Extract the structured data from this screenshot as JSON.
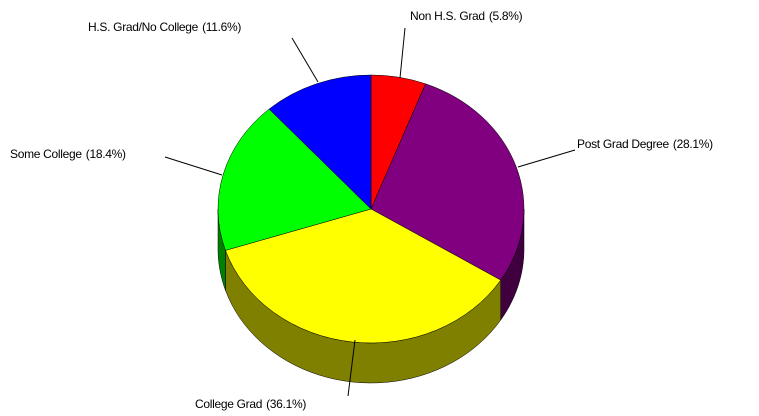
{
  "chart_data": {
    "type": "pie",
    "categories": [
      "Non H.S. Grad",
      "Post Grad Degree",
      "College Grad",
      "Some College",
      "H.S. Grad/No College"
    ],
    "values": [
      5.8,
      28.1,
      36.1,
      18.4,
      11.6
    ],
    "value_labels": [
      "(5.8%)",
      "(28.1%)",
      "(36.1%)",
      "(18.4%)",
      "(11.6%)"
    ],
    "colors": [
      "#ff0000",
      "#800080",
      "#ffff00",
      "#00ff00",
      "#0000ff"
    ],
    "three_d": true
  }
}
